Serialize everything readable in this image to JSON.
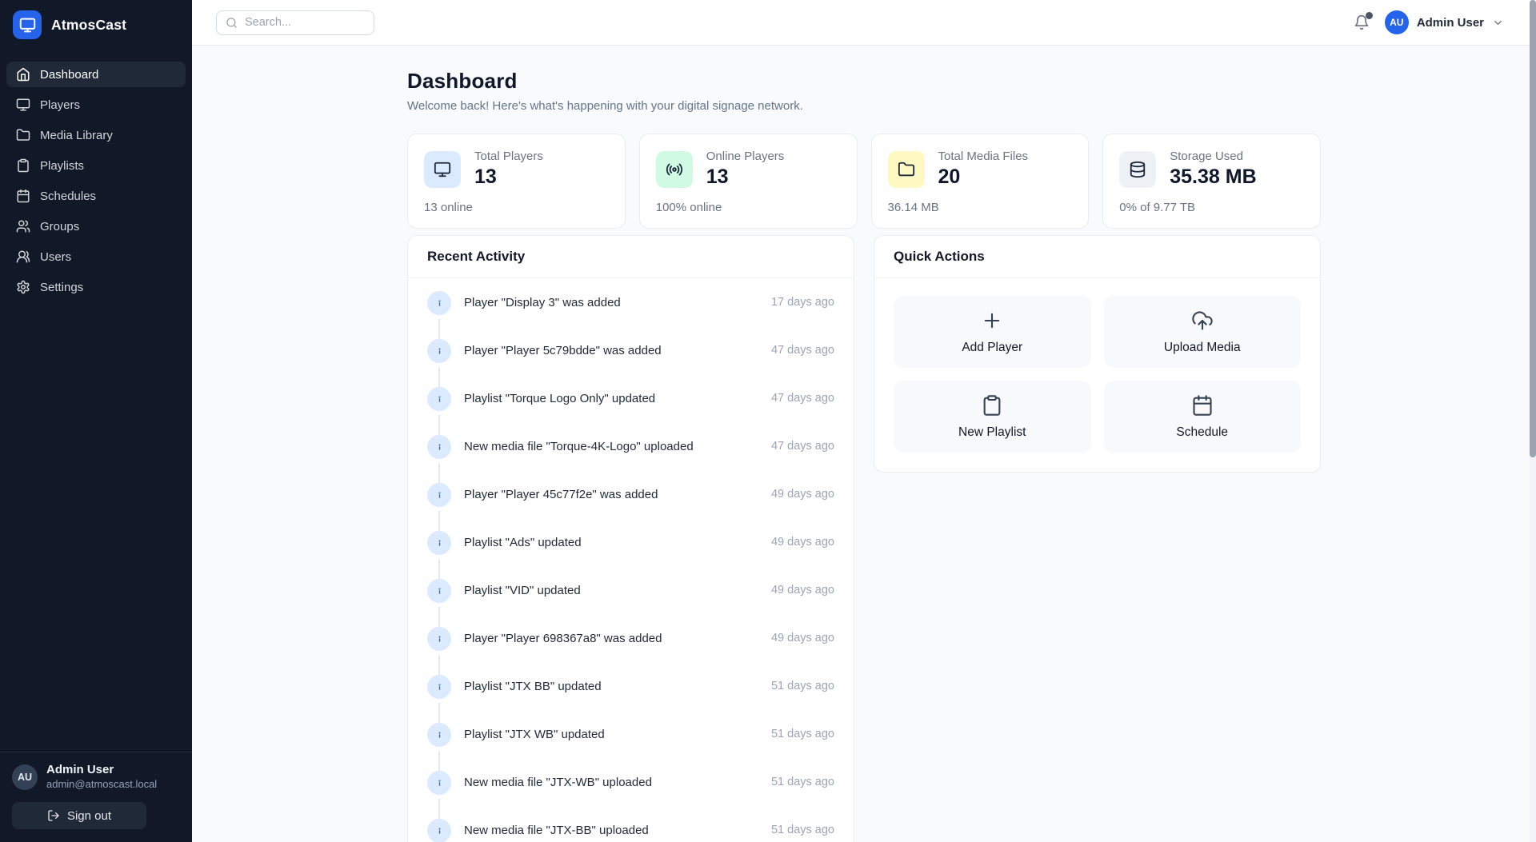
{
  "app": {
    "name": "AtmosCast"
  },
  "sidebar": {
    "items": [
      {
        "label": "Dashboard",
        "icon": "home-icon",
        "active": true
      },
      {
        "label": "Players",
        "icon": "monitor-icon",
        "active": false
      },
      {
        "label": "Media Library",
        "icon": "folder-icon",
        "active": false
      },
      {
        "label": "Playlists",
        "icon": "clipboard-icon",
        "active": false
      },
      {
        "label": "Schedules",
        "icon": "calendar-icon",
        "active": false
      },
      {
        "label": "Groups",
        "icon": "groups-icon",
        "active": false
      },
      {
        "label": "Users",
        "icon": "users-icon",
        "active": false
      },
      {
        "label": "Settings",
        "icon": "settings-icon",
        "active": false
      }
    ],
    "user": {
      "initials": "AU",
      "name": "Admin User",
      "email": "admin@atmoscast.local"
    },
    "signout_label": "Sign out"
  },
  "topbar": {
    "search_placeholder": "Search...",
    "user_initials": "AU",
    "user_name": "Admin User"
  },
  "page": {
    "title": "Dashboard",
    "subtitle": "Welcome back! Here's what's happening with your digital signage network."
  },
  "stats": [
    {
      "label": "Total Players",
      "value": "13",
      "caption": "13 online",
      "icon": "monitor-icon",
      "icon_bg": "#dbeafe"
    },
    {
      "label": "Online Players",
      "value": "13",
      "caption": "100% online",
      "icon": "broadcast-icon",
      "icon_bg": "#d1fae5"
    },
    {
      "label": "Total Media Files",
      "value": "20",
      "caption": "36.14 MB",
      "icon": "folder-icon",
      "icon_bg": "#fef9c3"
    },
    {
      "label": "Storage Used",
      "value": "35.38 MB",
      "caption": "0% of 9.77 TB",
      "icon": "database-icon",
      "icon_bg": "#eef2f7"
    }
  ],
  "recent_activity": {
    "title": "Recent Activity",
    "items": [
      {
        "text": "Player \"Display 3\" was added",
        "time": "17 days ago"
      },
      {
        "text": "Player \"Player 5c79bdde\" was added",
        "time": "47 days ago"
      },
      {
        "text": "Playlist \"Torque Logo Only\" updated",
        "time": "47 days ago"
      },
      {
        "text": "New media file \"Torque-4K-Logo\" uploaded",
        "time": "47 days ago"
      },
      {
        "text": "Player \"Player 45c77f2e\" was added",
        "time": "49 days ago"
      },
      {
        "text": "Playlist \"Ads\" updated",
        "time": "49 days ago"
      },
      {
        "text": "Playlist \"VID\" updated",
        "time": "49 days ago"
      },
      {
        "text": "Player \"Player 698367a8\" was added",
        "time": "49 days ago"
      },
      {
        "text": "Playlist \"JTX BB\" updated",
        "time": "51 days ago"
      },
      {
        "text": "Playlist \"JTX WB\" updated",
        "time": "51 days ago"
      },
      {
        "text": "New media file \"JTX-WB\" uploaded",
        "time": "51 days ago"
      },
      {
        "text": "New media file \"JTX-BB\" uploaded",
        "time": "51 days ago"
      }
    ]
  },
  "quick_actions": {
    "title": "Quick Actions",
    "actions": [
      {
        "label": "Add Player",
        "icon": "plus-icon"
      },
      {
        "label": "Upload Media",
        "icon": "upload-cloud-icon"
      },
      {
        "label": "New Playlist",
        "icon": "clipboard-icon"
      },
      {
        "label": "Schedule",
        "icon": "calendar-icon"
      }
    ]
  }
}
